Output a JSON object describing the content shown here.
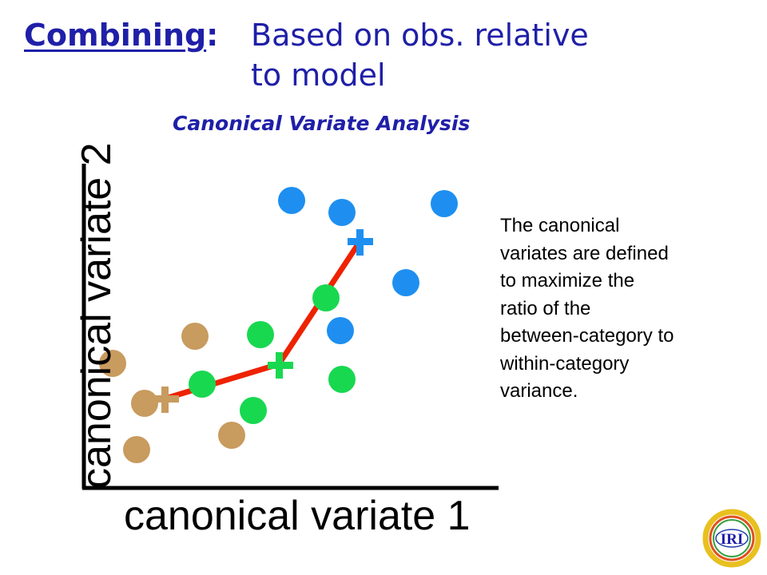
{
  "title": {
    "keyword": "Combining",
    "colon": ":",
    "line1": "Based on obs. relative",
    "line2": "to model"
  },
  "subtitle": "Canonical Variate Analysis",
  "description": [
    "The canonical",
    "variates are defined",
    "to maximize the",
    "ratio of the",
    "between-category to",
    "within-category",
    "variance."
  ],
  "axes": {
    "x_label": "canonical variate 1",
    "y_label": "canonical variate 2"
  },
  "colors": {
    "blue_category": "#1e8ff0",
    "green_category": "#18d850",
    "tan_category": "#c89b5e",
    "connector_line": "#ee2200",
    "title_text": "#1f1fa8",
    "logo_ring": "#e8c020"
  },
  "logo": {
    "text": "IRI"
  }
}
